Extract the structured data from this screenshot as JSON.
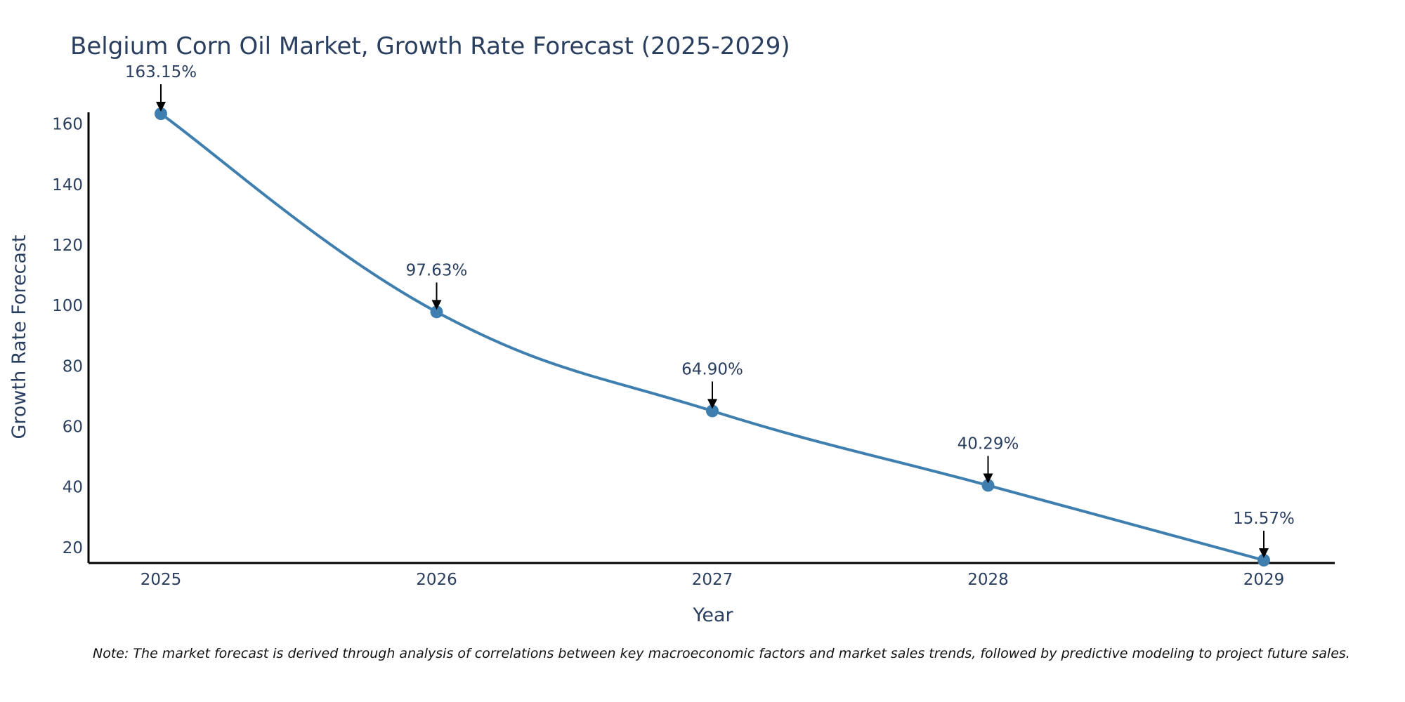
{
  "chart_data": {
    "type": "line",
    "title": "Belgium Corn Oil Market, Growth Rate Forecast (2025-2029)",
    "xlabel": "Year",
    "ylabel": "Growth Rate Forecast",
    "categories": [
      "2025",
      "2026",
      "2027",
      "2028",
      "2029"
    ],
    "values": [
      163.15,
      97.63,
      64.9,
      40.29,
      15.57
    ],
    "data_labels": [
      "163.15%",
      "97.63%",
      "64.90%",
      "40.29%",
      "15.57%"
    ],
    "yticks": [
      20,
      40,
      60,
      80,
      100,
      120,
      140,
      160
    ],
    "ylim": [
      15.57,
      163.15
    ],
    "line_color": "#3f7faf",
    "marker_color": "#3f7faf",
    "annotation_color": "#000000",
    "grid": false,
    "legend": "none",
    "smooth": true
  },
  "footnote": "Note: The market forecast is derived through analysis of correlations between key macroeconomic factors and market sales trends, followed by predictive modeling to project future sales."
}
